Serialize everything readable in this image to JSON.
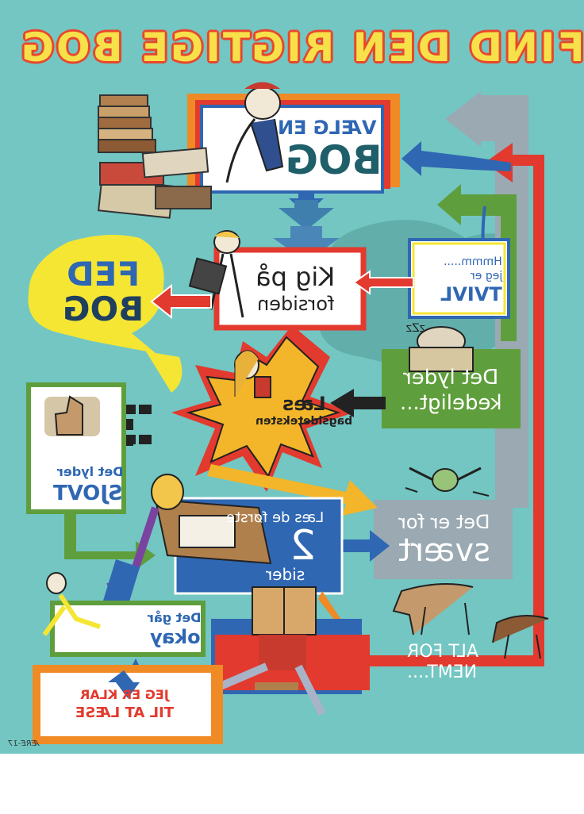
{
  "title": "FIND DEN RIGTIGE BOG",
  "colors": {
    "background": "#73c6c2",
    "red": "#e23a2e",
    "blue": "#2f67b3",
    "green": "#5f9e3c",
    "orange": "#ef8a25",
    "yellow": "#f5e634"
  },
  "nodes": {
    "choose_book": {
      "line1": "VÆLG EN",
      "line2": "BOG"
    },
    "look_cover": {
      "line1": "Kig på",
      "line2": "forsiden"
    },
    "fat_book": {
      "line1": "FED",
      "line2": "BOG"
    },
    "doubt": {
      "line1": "Hmmm.....",
      "line2": "jeg er",
      "line3": "TVIVL"
    },
    "read_back": {
      "line1": "Læs",
      "line2": "bagsideteksten"
    },
    "sounds_boring": {
      "line1": "Det lyder",
      "line2": "kedeligt..."
    },
    "sounds_cool": {
      "line1": "Det lyder",
      "line2": "SJOVT"
    },
    "read_two": {
      "line1": "Læs de første",
      "line2": "2",
      "line3": "sider"
    },
    "too_hard": {
      "line1": "Det er for",
      "line2": "svært"
    },
    "going_ok": {
      "line1": "Det går",
      "line2": "okay"
    },
    "too_easy": {
      "line1": "ALT FOR",
      "line2": "NEMT...."
    },
    "ready": {
      "line1": "JEG ER KLAR",
      "line2": "TIL AT LÆSE"
    }
  },
  "signature": "ÆRE-17"
}
